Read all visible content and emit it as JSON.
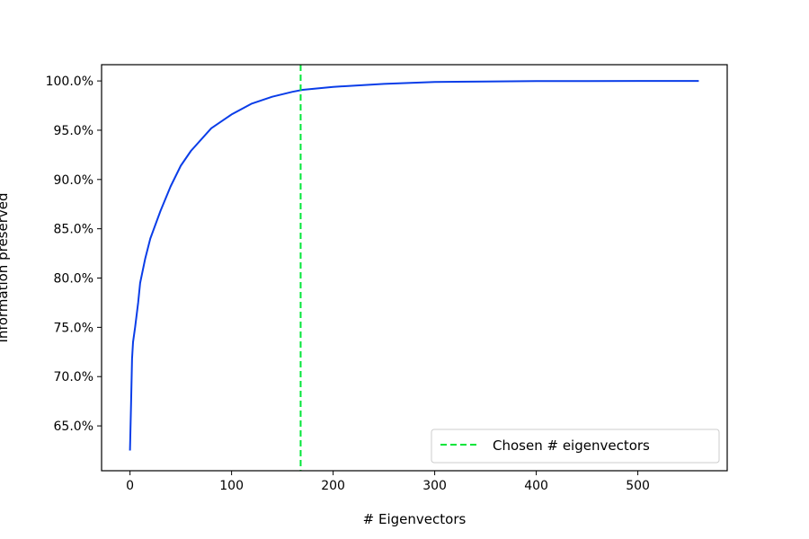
{
  "chart_data": {
    "type": "line",
    "title": "",
    "xlabel": "# Eigenvectors",
    "ylabel": "Information preserved",
    "xlim": [
      -28,
      588
    ],
    "ylim": [
      0.6045,
      1.0165
    ],
    "x_ticks": [
      0,
      100,
      200,
      300,
      400,
      500
    ],
    "x_tick_labels": [
      "0",
      "100",
      "200",
      "300",
      "400",
      "500"
    ],
    "y_ticks": [
      0.65,
      0.7,
      0.75,
      0.8,
      0.85,
      0.9,
      0.95,
      1.0
    ],
    "y_tick_labels": [
      "65.0%",
      "70.0%",
      "75.0%",
      "80.0%",
      "85.0%",
      "90.0%",
      "95.0%",
      "100.0%"
    ],
    "grid": false,
    "legend_position": "lower right",
    "series": [
      {
        "kind": "line",
        "color": "#0a3de8",
        "x": [
          0,
          1,
          2,
          3,
          5,
          8,
          10,
          15,
          20,
          30,
          40,
          50,
          60,
          80,
          100,
          120,
          140,
          160,
          170,
          200,
          250,
          300,
          350,
          400,
          450,
          500,
          560
        ],
        "y": [
          0.625,
          0.672,
          0.718,
          0.735,
          0.75,
          0.775,
          0.795,
          0.82,
          0.84,
          0.868,
          0.893,
          0.914,
          0.929,
          0.952,
          0.966,
          0.977,
          0.984,
          0.989,
          0.991,
          0.994,
          0.997,
          0.999,
          0.9995,
          0.9998,
          0.9999,
          1.0,
          1.0
        ]
      },
      {
        "kind": "vline",
        "name": "Chosen # eigenvectors",
        "color": "#00e639",
        "style": "dashed",
        "x": 168
      }
    ],
    "legend": [
      {
        "label": "Chosen # eigenvectors",
        "color": "#00e639",
        "style": "dashed"
      }
    ]
  }
}
